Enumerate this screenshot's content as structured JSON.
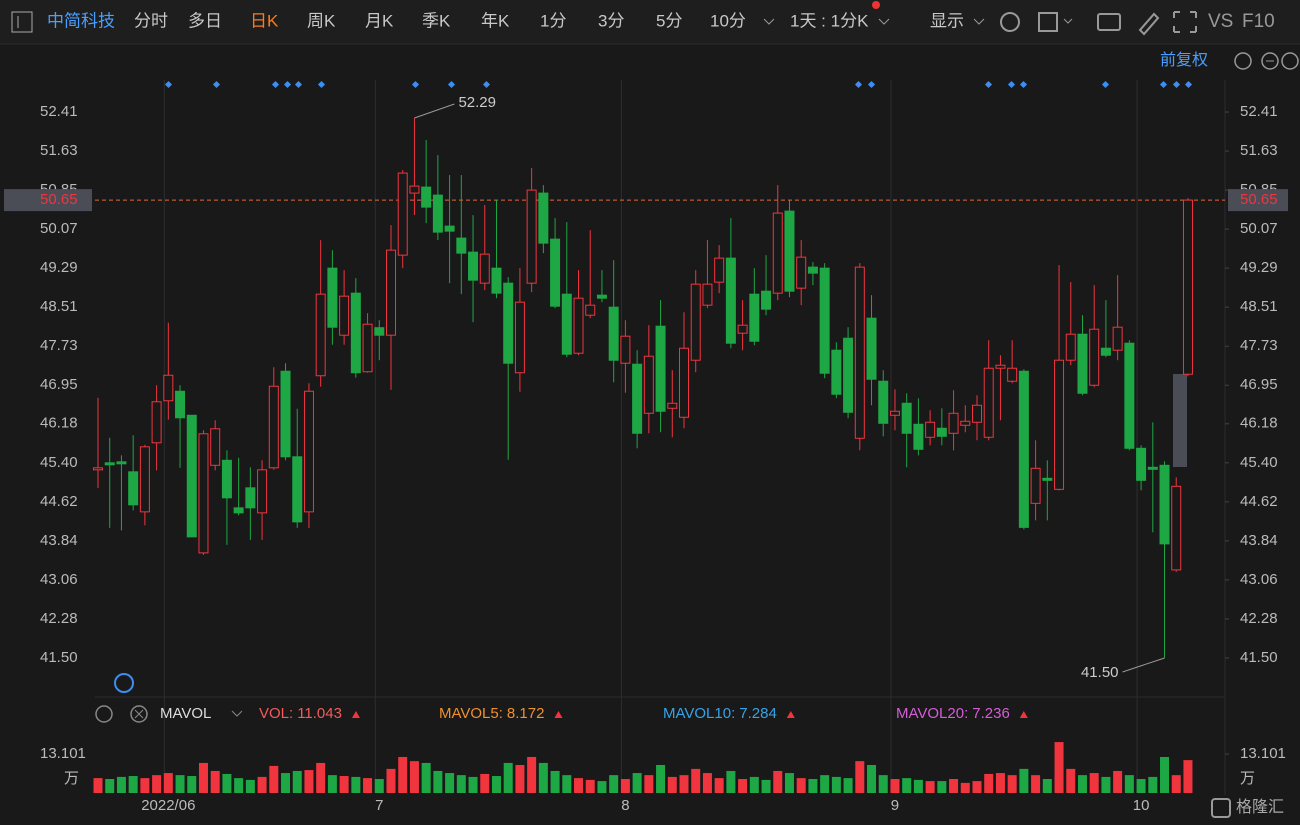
{
  "toolbar": {
    "stock": "中简科技",
    "periods": [
      "分时",
      "多日",
      "日K",
      "周K",
      "月K",
      "季K",
      "年K",
      "1分",
      "3分",
      "5分",
      "10分"
    ],
    "active_period": "日K",
    "range_select": "1天 : 1分K",
    "display": "显示",
    "vs": "VS",
    "f10": "F10",
    "adjust": "前复权"
  },
  "chart_data": {
    "type": "candlestick",
    "categories": [
      null,
      null,
      null,
      null,
      null,
      null,
      "2022/06",
      null,
      null,
      null,
      null,
      null,
      null,
      null,
      null,
      null,
      null,
      null,
      null,
      null,
      null,
      null,
      null,
      null,
      "7",
      null,
      null,
      null,
      null,
      null,
      null,
      null,
      null,
      null,
      null,
      null,
      null,
      null,
      null,
      null,
      null,
      null,
      null,
      null,
      null,
      "8",
      null,
      null,
      null,
      null,
      null,
      null,
      null,
      null,
      null,
      null,
      null,
      null,
      null,
      null,
      null,
      null,
      null,
      null,
      null,
      null,
      null,
      null,
      "9",
      null,
      null,
      null,
      null,
      null,
      null,
      null,
      null,
      null,
      null,
      null,
      null,
      null,
      null,
      null,
      null,
      null,
      null,
      null,
      null,
      "10",
      null,
      null,
      null,
      null
    ],
    "open": [
      45.26,
      45.4,
      45.42,
      45.22,
      44.42,
      45.8,
      46.64,
      46.83,
      46.35,
      43.6,
      45.35,
      45.45,
      44.5,
      44.9,
      44.4,
      45.3,
      47.23,
      45.52,
      44.42,
      47.14,
      49.29,
      47.95,
      48.79,
      47.22,
      48.1,
      47.95,
      49.55,
      50.79,
      50.91,
      50.75,
      50.13,
      49.89,
      49.61,
      48.99,
      49.29,
      48.99,
      47.2,
      48.99,
      50.79,
      49.87,
      48.77,
      47.59,
      48.35,
      48.75,
      48.51,
      47.39,
      47.37,
      46.39,
      48.13,
      46.49,
      46.31,
      47.45,
      48.55,
      49.01,
      49.49,
      47.99,
      48.77,
      48.83,
      48.79,
      50.43,
      48.89,
      49.31,
      49.29,
      47.65,
      47.89,
      45.89,
      48.29,
      47.03,
      46.35,
      46.59,
      46.17,
      45.91,
      46.09,
      45.99,
      46.15,
      46.21,
      45.91,
      47.29,
      47.03,
      47.23,
      44.59,
      45.09,
      44.87,
      47.45,
      47.97,
      46.95,
      47.69,
      47.65,
      47.79,
      45.69,
      45.31,
      45.35,
      43.26,
      47.17
    ],
    "high": [
      46.7,
      45.9,
      45.55,
      45.95,
      45.76,
      46.95,
      48.2,
      46.95,
      46.35,
      46.05,
      46.25,
      45.65,
      45.5,
      45.31,
      45.45,
      47.31,
      47.39,
      46.48,
      46.99,
      49.85,
      49.65,
      49.25,
      49.09,
      48.39,
      48.25,
      50.15,
      51.25,
      52.29,
      51.85,
      51.55,
      51.15,
      51.15,
      50.35,
      50.55,
      50.65,
      49.11,
      49.29,
      51.29,
      50.95,
      50.29,
      50.21,
      49.25,
      50.05,
      49.25,
      49.45,
      48.25,
      47.65,
      48.15,
      48.65,
      47.25,
      48.41,
      49.25,
      49.85,
      49.75,
      50.29,
      48.65,
      49.29,
      49.55,
      50.95,
      50.65,
      49.85,
      49.41,
      49.39,
      47.81,
      48.11,
      49.39,
      48.75,
      47.25,
      46.87,
      46.79,
      46.69,
      46.45,
      46.49,
      46.85,
      46.55,
      46.75,
      47.85,
      47.55,
      47.85,
      47.27,
      45.85,
      45.45,
      49.35,
      49.01,
      48.35,
      48.95,
      48.65,
      49.15,
      47.85,
      45.75,
      46.21,
      45.43,
      45.11,
      50.69
    ],
    "low": [
      44.9,
      44.1,
      44.05,
      44.45,
      44.15,
      45.25,
      46.26,
      45.3,
      43.92,
      43.56,
      45.25,
      43.76,
      44.35,
      43.86,
      43.86,
      45.26,
      45.45,
      44.1,
      44.1,
      46.92,
      47.76,
      47.76,
      47.1,
      47.2,
      47.45,
      46.86,
      49.29,
      50.35,
      50.19,
      49.85,
      48.99,
      48.77,
      48.21,
      48.85,
      48.69,
      45.46,
      46.82,
      48.81,
      49.59,
      48.49,
      47.51,
      47.55,
      48.29,
      48.61,
      47.01,
      46.8,
      45.69,
      45.99,
      46.01,
      45.91,
      46.09,
      47.21,
      48.49,
      48.79,
      47.69,
      47.65,
      47.75,
      48.35,
      48.65,
      48.71,
      48.55,
      48.95,
      47.09,
      46.69,
      46.29,
      45.65,
      46.55,
      45.93,
      46.05,
      45.31,
      45.55,
      45.75,
      45.75,
      45.65,
      46.01,
      45.85,
      45.85,
      46.25,
      46.99,
      44.07,
      44.25,
      44.25,
      44.85,
      47.35,
      46.75,
      46.91,
      47.51,
      47.45,
      45.65,
      44.85,
      44.01,
      41.5,
      43.22,
      47.13
    ],
    "close": [
      45.3,
      45.36,
      45.38,
      44.56,
      45.72,
      46.62,
      47.15,
      46.3,
      43.92,
      45.98,
      46.08,
      44.7,
      44.4,
      44.5,
      45.26,
      46.93,
      45.52,
      44.22,
      46.83,
      48.77,
      48.11,
      48.73,
      47.2,
      48.17,
      47.95,
      49.65,
      51.19,
      50.93,
      50.51,
      50.01,
      50.03,
      49.59,
      49.05,
      49.57,
      48.79,
      47.39,
      48.61,
      50.85,
      49.79,
      48.53,
      47.57,
      48.69,
      48.55,
      48.69,
      47.45,
      47.93,
      45.99,
      47.53,
      46.43,
      46.59,
      47.69,
      48.97,
      48.97,
      49.49,
      47.79,
      48.15,
      47.83,
      48.47,
      50.39,
      48.83,
      49.51,
      49.19,
      47.19,
      46.77,
      46.41,
      49.31,
      47.07,
      46.19,
      46.43,
      45.99,
      45.67,
      46.21,
      45.93,
      46.39,
      46.23,
      46.55,
      47.29,
      47.35,
      47.29,
      44.11,
      45.29,
      45.05,
      47.45,
      47.97,
      46.79,
      48.07,
      47.55,
      48.11,
      45.69,
      45.05,
      45.27,
      43.78,
      44.93,
      50.65
    ],
    "volume": [
      5.0,
      4.7,
      5.4,
      5.7,
      5.0,
      6.0,
      6.7,
      6.0,
      5.7,
      10.1,
      7.4,
      6.4,
      5.0,
      4.4,
      5.4,
      9.1,
      6.7,
      7.4,
      7.7,
      10.1,
      6.0,
      5.7,
      5.4,
      5.0,
      4.7,
      8.1,
      12.1,
      10.7,
      10.1,
      7.4,
      6.7,
      6.0,
      5.4,
      6.4,
      5.7,
      10.1,
      9.4,
      12.1,
      10.1,
      7.4,
      6.0,
      5.0,
      4.4,
      4.0,
      6.0,
      4.7,
      6.7,
      6.0,
      9.4,
      5.4,
      6.0,
      8.1,
      6.7,
      5.0,
      7.4,
      4.7,
      5.4,
      4.4,
      7.4,
      6.7,
      5.0,
      4.7,
      6.0,
      5.4,
      5.0,
      10.7,
      9.4,
      6.0,
      4.7,
      5.0,
      4.4,
      4.0,
      4.0,
      4.7,
      3.4,
      4.0,
      6.4,
      6.7,
      6.0,
      8.1,
      6.0,
      4.7,
      17.1,
      8.1,
      6.0,
      6.7,
      5.4,
      7.4,
      6.0,
      4.7,
      5.4,
      12.1,
      6.0,
      11.043
    ],
    "up_color": "#f0353f",
    "down_color": "#1ea745",
    "ylim": [
      40.72,
      53.05
    ],
    "yticks": [
      {
        "value": 41.5,
        "label": "41.50"
      },
      42.28,
      43.06,
      43.84,
      44.62,
      {
        "value": 45.4,
        "label": "45.40"
      },
      46.18,
      46.95,
      47.73,
      48.51,
      49.29,
      50.07,
      50.85,
      51.63,
      52.41
    ],
    "last_price": 50.65,
    "high_mark": 52.29,
    "low_mark": {
      "value": 41.5,
      "label": "41.50"
    },
    "volume_indicator": "MAVOL",
    "volume_legend": [
      {
        "name": "VOL:",
        "value": 11.043,
        "color": "#f45b5b"
      },
      {
        "name": "MAVOL5:",
        "value": 8.172,
        "color": "#f0902e"
      },
      {
        "name": "MAVOL10:",
        "value": 7.284,
        "color": "#36a3e8"
      },
      {
        "name": "MAVOL20:",
        "value": 7.236,
        "color": "#d35ed6"
      }
    ],
    "volume_ylim": [
      0,
      17.8
    ],
    "volume_yticks": [
      13.101
    ],
    "volume_unit": "万"
  }
}
